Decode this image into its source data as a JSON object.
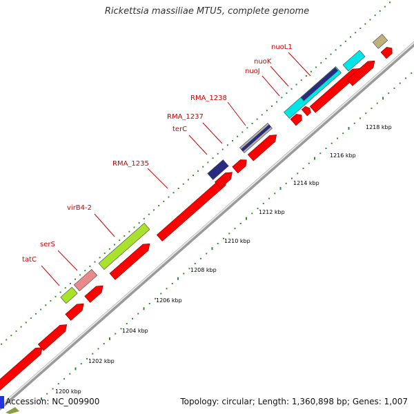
{
  "title": "Rickettsia massiliae MTU5, complete genome",
  "accession": "Accession: NC_009900",
  "summary": "Topology: circular; Length: 1,360,898 bp; Genes: 1,007",
  "colors": {
    "backbone": "#bdbdbd",
    "cds": "#ff0000",
    "dots": "#2e8b2e",
    "label": "#cc0000",
    "navy": "#2a2a82",
    "cyan": "#00e5e5",
    "lime": "#a8e22c",
    "pink": "#e88a8a",
    "gray": "#b0b0b0",
    "khaki": "#bdb07a"
  },
  "ticks": [
    {
      "label": "1200 kbp"
    },
    {
      "label": "1202 kbp"
    },
    {
      "label": "1204 kbp"
    },
    {
      "label": "1206 kbp"
    },
    {
      "label": "1208 kbp"
    },
    {
      "label": "1210 kbp"
    },
    {
      "label": "1212 kbp"
    },
    {
      "label": "1214 kbp"
    },
    {
      "label": "1216 kbp"
    },
    {
      "label": "1218 kbp"
    }
  ],
  "gene_labels": [
    {
      "name": "tatC"
    },
    {
      "name": "serS"
    },
    {
      "name": "virB4-2"
    },
    {
      "name": "RMA_1235"
    },
    {
      "name": "terC"
    },
    {
      "name": "RMA_1237"
    },
    {
      "name": "RMA_1238"
    },
    {
      "name": "nuoJ"
    },
    {
      "name": "nuoK"
    },
    {
      "name": "nuoL1"
    }
  ]
}
